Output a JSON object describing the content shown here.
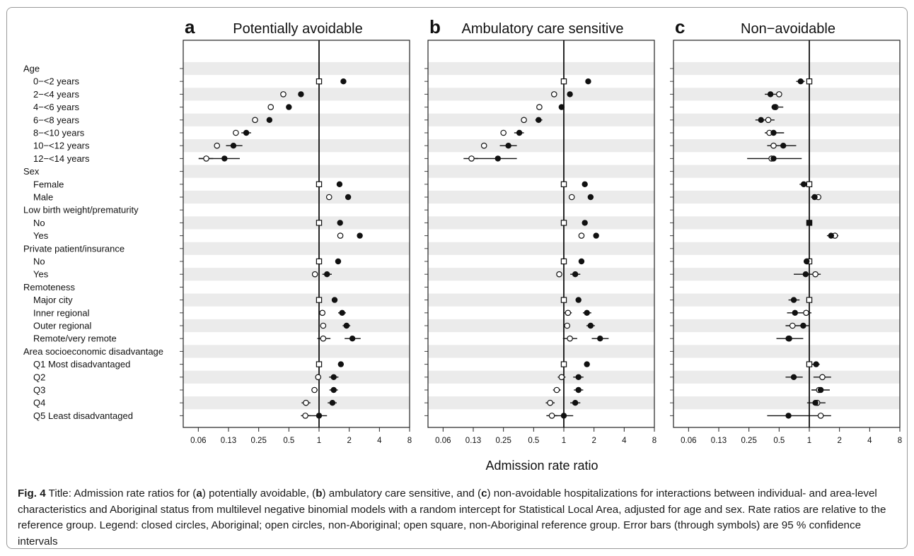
{
  "chart_data": {
    "type": "forest-plot",
    "x_scale": "log2",
    "xlabel": "Admission rate ratio",
    "xlim": [
      0.0441942,
      8
    ],
    "x_ticks": [
      0.0625,
      0.125,
      0.25,
      0.5,
      1,
      2,
      4,
      8
    ],
    "x_tick_labels": [
      "0.06",
      "0.13",
      "0.25",
      "0.5",
      "1",
      "2",
      "4",
      "8"
    ],
    "reference_line": 1,
    "legend": [
      {
        "marker": "closed-circle",
        "name": "Aboriginal"
      },
      {
        "marker": "open-circle",
        "name": "non-Aboriginal"
      },
      {
        "marker": "open-square",
        "name": "non-Aboriginal reference group"
      }
    ],
    "rows": [
      {
        "label": "Age",
        "header": true
      },
      {
        "label": "0−<2 years"
      },
      {
        "label": "2−<4 years"
      },
      {
        "label": "4−<6 years"
      },
      {
        "label": "6−<8 years"
      },
      {
        "label": "8−<10 years"
      },
      {
        "label": "10−<12 years"
      },
      {
        "label": "12−<14 years"
      },
      {
        "label": "Sex",
        "header": true
      },
      {
        "label": "Female"
      },
      {
        "label": "Male"
      },
      {
        "label": "Low birth weight/prematurity",
        "header": true
      },
      {
        "label": "No"
      },
      {
        "label": "Yes"
      },
      {
        "label": "Private patient/insurance",
        "header": true
      },
      {
        "label": "No"
      },
      {
        "label": "Yes"
      },
      {
        "label": "Remoteness",
        "header": true
      },
      {
        "label": "Major city"
      },
      {
        "label": "Inner regional"
      },
      {
        "label": "Outer regional"
      },
      {
        "label": "Remote/very remote"
      },
      {
        "label": "Area socioeconomic disadvantage",
        "header": true
      },
      {
        "label": "Q1 Most disadvantaged"
      },
      {
        "label": "Q2"
      },
      {
        "label": "Q3"
      },
      {
        "label": "Q4"
      },
      {
        "label": "Q5 Least disadvantaged"
      }
    ],
    "panels": [
      {
        "letter": "a",
        "title": "Potentially avoidable",
        "points": [
          {
            "row": 1,
            "marker": "square",
            "est": 1
          },
          {
            "row": 1,
            "marker": "closed",
            "est": 1.75
          },
          {
            "row": 2,
            "marker": "open",
            "est": 0.44
          },
          {
            "row": 2,
            "marker": "closed",
            "est": 0.66
          },
          {
            "row": 3,
            "marker": "open",
            "est": 0.33
          },
          {
            "row": 3,
            "marker": "closed",
            "est": 0.5
          },
          {
            "row": 4,
            "marker": "open",
            "est": 0.23
          },
          {
            "row": 4,
            "marker": "closed",
            "est": 0.32,
            "lo": 0.3,
            "hi": 0.34
          },
          {
            "row": 5,
            "marker": "open",
            "est": 0.148
          },
          {
            "row": 5,
            "marker": "closed",
            "est": 0.188,
            "lo": 0.168,
            "hi": 0.21
          },
          {
            "row": 6,
            "marker": "open",
            "est": 0.096
          },
          {
            "row": 6,
            "marker": "closed",
            "est": 0.14,
            "lo": 0.118,
            "hi": 0.172
          },
          {
            "row": 7,
            "marker": "open",
            "est": 0.075,
            "lo": 0.063,
            "hi": 0.088
          },
          {
            "row": 7,
            "marker": "closed",
            "est": 0.114,
            "lo": 0.063,
            "hi": 0.162
          },
          {
            "row": 9,
            "marker": "square",
            "est": 1
          },
          {
            "row": 9,
            "marker": "closed",
            "est": 1.6
          },
          {
            "row": 10,
            "marker": "open",
            "est": 1.26
          },
          {
            "row": 10,
            "marker": "closed",
            "est": 1.95
          },
          {
            "row": 12,
            "marker": "square",
            "est": 1
          },
          {
            "row": 12,
            "marker": "closed",
            "est": 1.62
          },
          {
            "row": 13,
            "marker": "open",
            "est": 1.63
          },
          {
            "row": 13,
            "marker": "closed",
            "est": 2.55
          },
          {
            "row": 15,
            "marker": "square",
            "est": 1
          },
          {
            "row": 15,
            "marker": "closed",
            "est": 1.55
          },
          {
            "row": 16,
            "marker": "open",
            "est": 0.91
          },
          {
            "row": 16,
            "marker": "closed",
            "est": 1.2,
            "lo": 1.08,
            "hi": 1.34
          },
          {
            "row": 18,
            "marker": "square",
            "est": 1
          },
          {
            "row": 18,
            "marker": "closed",
            "est": 1.43
          },
          {
            "row": 19,
            "marker": "open",
            "est": 1.08
          },
          {
            "row": 19,
            "marker": "closed",
            "est": 1.7,
            "lo": 1.55,
            "hi": 1.85
          },
          {
            "row": 20,
            "marker": "open",
            "est": 1.1
          },
          {
            "row": 20,
            "marker": "closed",
            "est": 1.88,
            "lo": 1.72,
            "hi": 2.05
          },
          {
            "row": 21,
            "marker": "open",
            "est": 1.1,
            "lo": 0.96,
            "hi": 1.3
          },
          {
            "row": 21,
            "marker": "closed",
            "est": 2.15,
            "lo": 1.8,
            "hi": 2.6
          },
          {
            "row": 23,
            "marker": "square",
            "est": 1
          },
          {
            "row": 23,
            "marker": "closed",
            "est": 1.65
          },
          {
            "row": 24,
            "marker": "open",
            "est": 0.98,
            "lo": 0.92,
            "hi": 1.05
          },
          {
            "row": 24,
            "marker": "closed",
            "est": 1.4,
            "lo": 1.26,
            "hi": 1.56
          },
          {
            "row": 25,
            "marker": "open",
            "est": 0.9,
            "lo": 0.84,
            "hi": 0.97
          },
          {
            "row": 25,
            "marker": "closed",
            "est": 1.4,
            "lo": 1.27,
            "hi": 1.54
          },
          {
            "row": 26,
            "marker": "open",
            "est": 0.74,
            "lo": 0.67,
            "hi": 0.82
          },
          {
            "row": 26,
            "marker": "closed",
            "est": 1.36,
            "lo": 1.22,
            "hi": 1.5
          },
          {
            "row": 27,
            "marker": "open",
            "est": 0.73,
            "lo": 0.66,
            "hi": 0.82
          },
          {
            "row": 27,
            "marker": "closed",
            "est": 1,
            "lo": 0.8,
            "hi": 1.2
          }
        ]
      },
      {
        "letter": "b",
        "title": "Ambulatory care sensitive",
        "points": [
          {
            "row": 1,
            "marker": "square",
            "est": 1
          },
          {
            "row": 1,
            "marker": "closed",
            "est": 1.75
          },
          {
            "row": 2,
            "marker": "open",
            "est": 0.8
          },
          {
            "row": 2,
            "marker": "closed",
            "est": 1.15
          },
          {
            "row": 3,
            "marker": "open",
            "est": 0.57
          },
          {
            "row": 3,
            "marker": "closed",
            "est": 0.95
          },
          {
            "row": 4,
            "marker": "open",
            "est": 0.4
          },
          {
            "row": 4,
            "marker": "closed",
            "est": 0.56,
            "lo": 0.52,
            "hi": 0.61
          },
          {
            "row": 5,
            "marker": "open",
            "est": 0.25
          },
          {
            "row": 5,
            "marker": "closed",
            "est": 0.36,
            "lo": 0.32,
            "hi": 0.4
          },
          {
            "row": 6,
            "marker": "open",
            "est": 0.16
          },
          {
            "row": 6,
            "marker": "closed",
            "est": 0.28,
            "lo": 0.23,
            "hi": 0.34
          },
          {
            "row": 7,
            "marker": "open",
            "est": 0.12,
            "lo": 0.1,
            "hi": 0.14
          },
          {
            "row": 7,
            "marker": "closed",
            "est": 0.22,
            "lo": 0.13,
            "hi": 0.34
          },
          {
            "row": 9,
            "marker": "square",
            "est": 1
          },
          {
            "row": 9,
            "marker": "closed",
            "est": 1.62
          },
          {
            "row": 10,
            "marker": "open",
            "est": 1.2
          },
          {
            "row": 10,
            "marker": "closed",
            "est": 1.85
          },
          {
            "row": 12,
            "marker": "square",
            "est": 1
          },
          {
            "row": 12,
            "marker": "closed",
            "est": 1.62
          },
          {
            "row": 13,
            "marker": "open",
            "est": 1.5
          },
          {
            "row": 13,
            "marker": "closed",
            "est": 2.1
          },
          {
            "row": 15,
            "marker": "square",
            "est": 1
          },
          {
            "row": 15,
            "marker": "closed",
            "est": 1.5
          },
          {
            "row": 16,
            "marker": "open",
            "est": 0.9
          },
          {
            "row": 16,
            "marker": "closed",
            "est": 1.3,
            "lo": 1.16,
            "hi": 1.46
          },
          {
            "row": 18,
            "marker": "square",
            "est": 1
          },
          {
            "row": 18,
            "marker": "closed",
            "est": 1.4
          },
          {
            "row": 19,
            "marker": "open",
            "est": 1.1,
            "lo": 1.0,
            "hi": 1.2
          },
          {
            "row": 19,
            "marker": "closed",
            "est": 1.7,
            "lo": 1.55,
            "hi": 1.88
          },
          {
            "row": 20,
            "marker": "open",
            "est": 1.08
          },
          {
            "row": 20,
            "marker": "closed",
            "est": 1.85,
            "lo": 1.68,
            "hi": 2.04
          },
          {
            "row": 21,
            "marker": "open",
            "est": 1.15,
            "lo": 0.98,
            "hi": 1.36
          },
          {
            "row": 21,
            "marker": "closed",
            "est": 2.3,
            "lo": 1.9,
            "hi": 2.8
          },
          {
            "row": 23,
            "marker": "square",
            "est": 1
          },
          {
            "row": 23,
            "marker": "closed",
            "est": 1.7
          },
          {
            "row": 24,
            "marker": "open",
            "est": 0.95,
            "lo": 0.87,
            "hi": 1.04
          },
          {
            "row": 24,
            "marker": "closed",
            "est": 1.4,
            "lo": 1.24,
            "hi": 1.57
          },
          {
            "row": 25,
            "marker": "open",
            "est": 0.85,
            "lo": 0.78,
            "hi": 0.93
          },
          {
            "row": 25,
            "marker": "closed",
            "est": 1.4,
            "lo": 1.26,
            "hi": 1.56
          },
          {
            "row": 26,
            "marker": "open",
            "est": 0.73,
            "lo": 0.66,
            "hi": 0.81
          },
          {
            "row": 26,
            "marker": "closed",
            "est": 1.3,
            "lo": 1.16,
            "hi": 1.46
          },
          {
            "row": 27,
            "marker": "open",
            "est": 0.76,
            "lo": 0.67,
            "hi": 0.86
          },
          {
            "row": 27,
            "marker": "closed",
            "est": 1,
            "lo": 0.8,
            "hi": 1.24
          }
        ]
      },
      {
        "letter": "c",
        "title": "Non−avoidable",
        "points": [
          {
            "row": 1,
            "marker": "square",
            "est": 1
          },
          {
            "row": 1,
            "marker": "closed",
            "est": 0.82,
            "lo": 0.74,
            "hi": 0.9
          },
          {
            "row": 2,
            "marker": "open",
            "est": 0.5
          },
          {
            "row": 2,
            "marker": "closed",
            "est": 0.41,
            "lo": 0.36,
            "hi": 0.47
          },
          {
            "row": 3,
            "marker": "open",
            "est": 0.46,
            "lo": 0.42,
            "hi": 0.55
          },
          {
            "row": 3,
            "marker": "closed",
            "est": 0.45
          },
          {
            "row": 4,
            "marker": "open",
            "est": 0.39,
            "lo": 0.29,
            "hi": 0.45
          },
          {
            "row": 4,
            "marker": "closed",
            "est": 0.33
          },
          {
            "row": 5,
            "marker": "open",
            "est": 0.4,
            "lo": 0.36,
            "hi": 0.56
          },
          {
            "row": 5,
            "marker": "closed",
            "est": 0.44
          },
          {
            "row": 6,
            "marker": "open",
            "est": 0.44,
            "lo": 0.38,
            "hi": 0.74
          },
          {
            "row": 6,
            "marker": "closed",
            "est": 0.55
          },
          {
            "row": 7,
            "marker": "open",
            "est": 0.42,
            "lo": 0.24,
            "hi": 0.84
          },
          {
            "row": 7,
            "marker": "closed",
            "est": 0.44
          },
          {
            "row": 9,
            "marker": "square",
            "est": 1
          },
          {
            "row": 9,
            "marker": "closed",
            "est": 0.88,
            "lo": 0.8,
            "hi": 0.96
          },
          {
            "row": 10,
            "marker": "open",
            "est": 1.23
          },
          {
            "row": 10,
            "marker": "closed",
            "est": 1.13,
            "lo": 1.04,
            "hi": 1.23
          },
          {
            "row": 12,
            "marker": "square",
            "est": 1
          },
          {
            "row": 12,
            "marker": "closed",
            "est": 1
          },
          {
            "row": 13,
            "marker": "open",
            "est": 1.8,
            "lo": 1.5,
            "hi": 1.95
          },
          {
            "row": 13,
            "marker": "closed",
            "est": 1.65
          },
          {
            "row": 15,
            "marker": "square",
            "est": 1
          },
          {
            "row": 15,
            "marker": "closed",
            "est": 0.94
          },
          {
            "row": 16,
            "marker": "open",
            "est": 1.15,
            "lo": 0.7,
            "hi": 1.3
          },
          {
            "row": 16,
            "marker": "closed",
            "est": 0.92
          },
          {
            "row": 18,
            "marker": "square",
            "est": 1
          },
          {
            "row": 18,
            "marker": "closed",
            "est": 0.7,
            "lo": 0.62,
            "hi": 0.8
          },
          {
            "row": 19,
            "marker": "open",
            "est": 0.93,
            "lo": 0.6,
            "hi": 1.05
          },
          {
            "row": 19,
            "marker": "closed",
            "est": 0.72
          },
          {
            "row": 20,
            "marker": "open",
            "est": 0.68,
            "lo": 0.58,
            "hi": 1.0
          },
          {
            "row": 20,
            "marker": "closed",
            "est": 0.87
          },
          {
            "row": 21,
            "marker": "open",
            "est": 0.63
          },
          {
            "row": 21,
            "marker": "closed",
            "est": 0.62,
            "lo": 0.47,
            "hi": 0.87
          },
          {
            "row": 23,
            "marker": "square",
            "est": 1
          },
          {
            "row": 23,
            "marker": "closed",
            "est": 1.17,
            "lo": 1.06,
            "hi": 1.27
          },
          {
            "row": 24,
            "marker": "open",
            "est": 1.35,
            "lo": 1.1,
            "hi": 1.65
          },
          {
            "row": 24,
            "marker": "closed",
            "est": 0.7,
            "lo": 0.58,
            "hi": 0.86
          },
          {
            "row": 25,
            "marker": "open",
            "est": 1.25,
            "lo": 1.05,
            "hi": 1.6
          },
          {
            "row": 25,
            "marker": "closed",
            "est": 1.3
          },
          {
            "row": 26,
            "marker": "open",
            "est": 1.2,
            "lo": 0.95,
            "hi": 1.45
          },
          {
            "row": 26,
            "marker": "closed",
            "est": 1.15
          },
          {
            "row": 27,
            "marker": "open",
            "est": 1.3,
            "lo": 1.0,
            "hi": 1.65
          },
          {
            "row": 27,
            "marker": "closed",
            "est": 0.62,
            "lo": 0.38,
            "hi": 1.0
          }
        ]
      }
    ]
  },
  "caption": {
    "label": "Fig. 4",
    "t1": " Title: Admission rate ratios for (",
    "a": "a",
    "t2": ") potentially avoidable, (",
    "b": "b",
    "t3": ") ambulatory care sensitive, and (",
    "c": "c",
    "t4": ") non-avoidable hospitalizations for interactions between individual- and area-level characteristics and Aboriginal status from multilevel negative binomial models with a random intercept for Statistical Local Area, adjusted for age and sex. Rate ratios are relative to the reference group. Legend: closed circles, Aboriginal; open circles, non-Aboriginal; open square, non-Aboriginal reference group. Error bars (through symbols) are 95 % confidence intervals"
  }
}
